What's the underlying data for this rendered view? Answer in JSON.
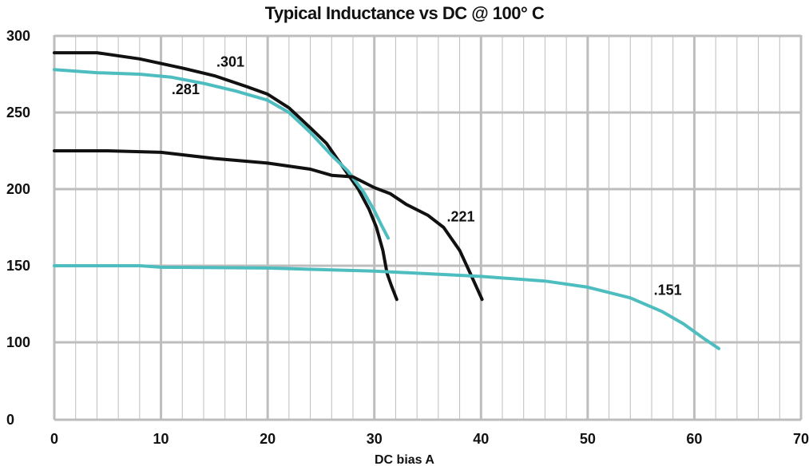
{
  "chart_data": {
    "type": "line",
    "title": "Typical Inductance vs DC @ 100° C",
    "xlabel": "DC bias A",
    "ylabel": "",
    "xlim": [
      0,
      70
    ],
    "ylim": [
      0,
      300
    ],
    "x_ticks": [
      0,
      10,
      20,
      30,
      40,
      50,
      60,
      70
    ],
    "y_ticks": [
      0,
      100,
      150,
      200,
      250,
      300
    ],
    "grid": true,
    "colors": {
      "black": "#111111",
      "teal": "#4dbdbf",
      "grid": "#bdbdbd"
    },
    "series": [
      {
        "name": ".301",
        "color": "#111111",
        "x": [
          0,
          4,
          8,
          12,
          15,
          18,
          20,
          22,
          24,
          25.5,
          27,
          28.5,
          29.5,
          30.2,
          30.8,
          31.2,
          31.6,
          32.1
        ],
        "y": [
          289,
          289,
          285,
          279,
          274,
          267,
          262,
          253,
          240,
          230,
          215,
          200,
          187,
          175,
          160,
          145,
          137,
          128
        ]
      },
      {
        "name": ".281",
        "color": "#4dbdbf",
        "x": [
          0,
          4,
          8,
          11,
          14,
          17,
          20,
          22,
          24,
          26,
          27.5,
          29,
          30,
          30.7,
          31.3
        ],
        "y": [
          278,
          276,
          275,
          273,
          269,
          264,
          258,
          250,
          237,
          222,
          212,
          198,
          186,
          176,
          168
        ]
      },
      {
        "name": ".221",
        "color": "#111111",
        "x": [
          0,
          5,
          10,
          15,
          20,
          24,
          26,
          28,
          30,
          31.5,
          33,
          35,
          36.5,
          38,
          39,
          40.1
        ],
        "y": [
          225,
          225,
          224,
          220,
          217,
          213,
          209,
          208,
          201,
          197,
          190,
          183,
          175,
          160,
          145,
          128
        ]
      },
      {
        "name": ".151",
        "color": "#4dbdbf",
        "x": [
          0,
          8,
          10,
          20,
          30,
          40,
          46,
          50,
          54,
          57,
          59,
          61,
          62.3
        ],
        "y": [
          150,
          150,
          149,
          148.5,
          146.5,
          143,
          140,
          136,
          129,
          120,
          112,
          102,
          92
        ]
      }
    ],
    "annotations": [
      {
        "text": ".301",
        "x": 15.2,
        "y": 280
      },
      {
        "text": ".281",
        "x": 11,
        "y": 262
      },
      {
        "text": ".221",
        "x": 36.8,
        "y": 179
      },
      {
        "text": ".151",
        "x": 56.2,
        "y": 131
      }
    ]
  }
}
